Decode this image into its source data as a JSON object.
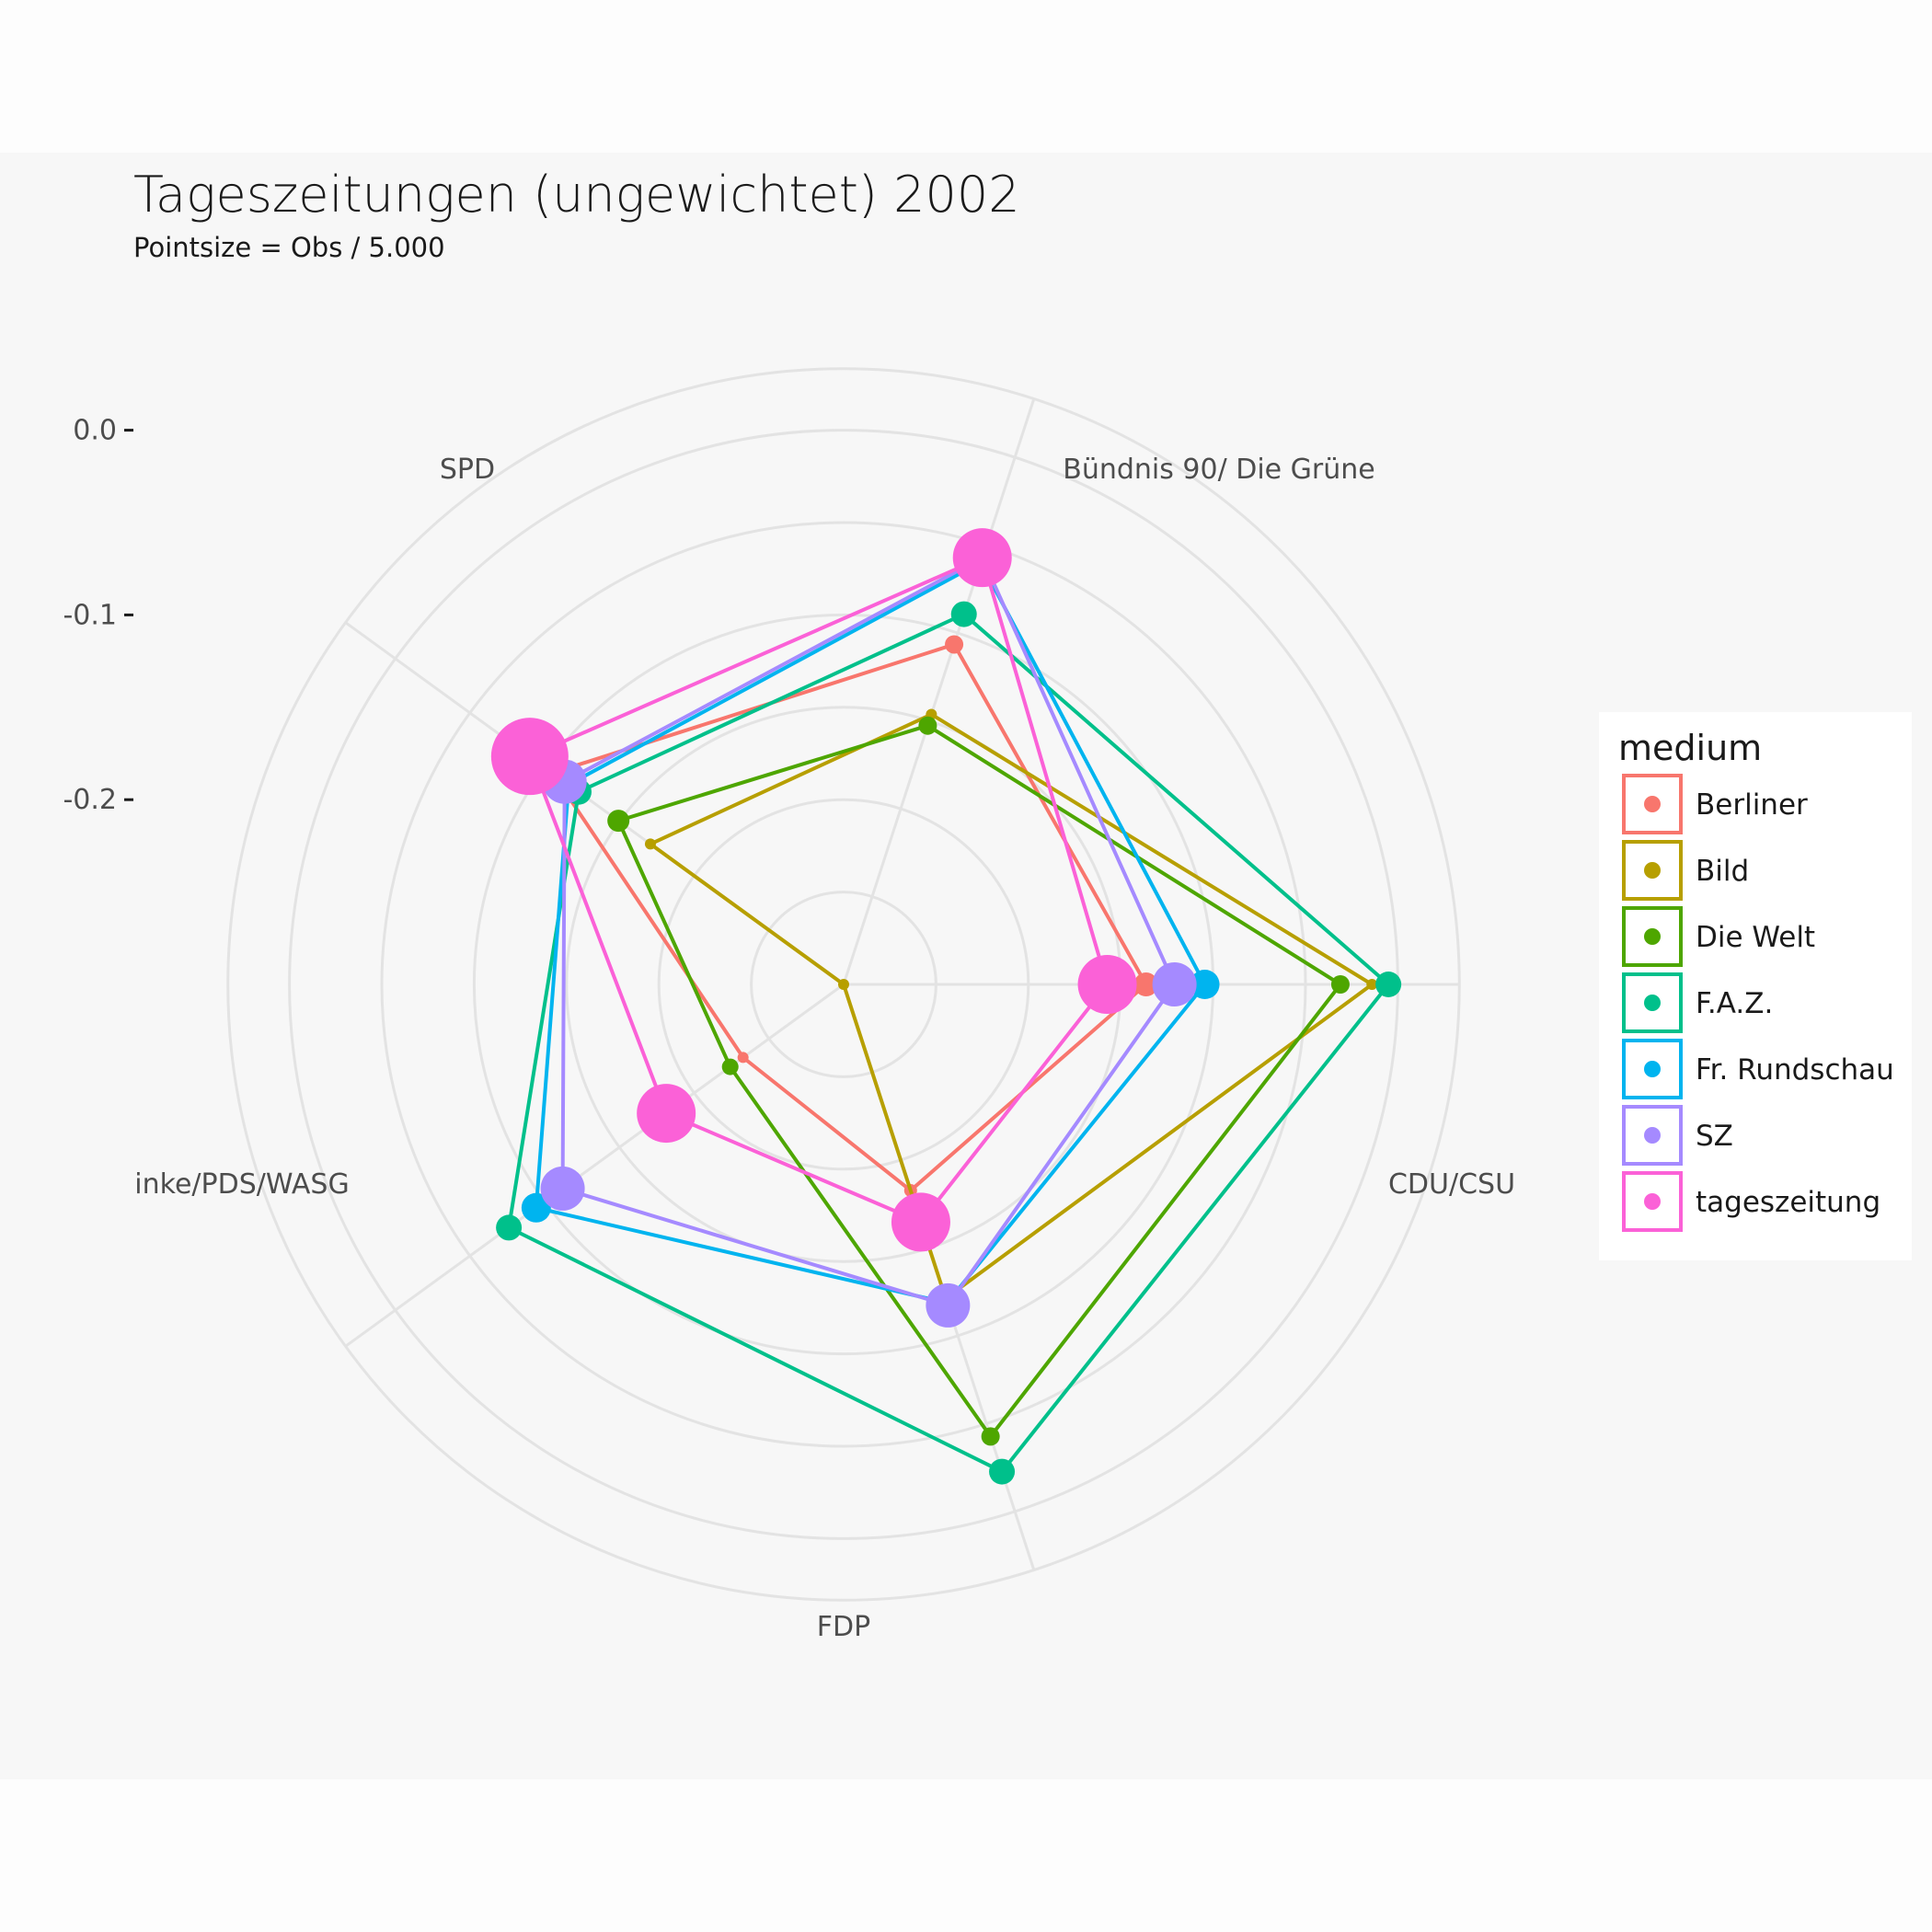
{
  "chart_data": {
    "type": "radar",
    "title": "Tageszeitungen (ungewichtet) 2002",
    "subtitle": "Pointsize = Obs / 5.000",
    "categories": [
      "SPD",
      "Bündnis 90/ Die Grüne",
      "CDU/CSU",
      "FDP",
      "inke/PDS/WASG"
    ],
    "radial_axis": {
      "ticks": [
        0.0,
        -0.1,
        -0.2
      ],
      "tick_labels": [
        "0.0",
        "-0.1",
        "-0.2"
      ],
      "range": [
        -0.3,
        0.0333
      ]
    },
    "grid": true,
    "legend": {
      "title": "medium",
      "position": "right"
    },
    "series": [
      {
        "name": "Berliner",
        "color": "#f8766d",
        "values": [
          -0.1053,
          -0.1065,
          -0.1363,
          -0.1827,
          -0.2327
        ],
        "sizes": [
          1.0,
          1.0,
          1.3,
          0.7,
          0.6
        ]
      },
      {
        "name": "Bild",
        "color": "#b79f00",
        "values": [
          -0.1707,
          -0.1463,
          -0.014,
          -0.1213,
          -0.3
        ],
        "sizes": [
          0.6,
          0.6,
          0.6,
          0.6,
          0.6
        ]
      },
      {
        "name": "Die Welt",
        "color": "#4ea600",
        "values": [
          -0.1493,
          -0.1527,
          -0.0311,
          -0.0427,
          -0.2241
        ],
        "sizes": [
          1.2,
          1.0,
          1.0,
          1.0,
          0.9
        ]
      },
      {
        "name": "F.A.Z.",
        "color": "#00c08b",
        "values": [
          -0.1227,
          -0.0893,
          -0.0051,
          -0.0227,
          -0.076
        ],
        "sizes": [
          1.4,
          1.4,
          1.4,
          1.4,
          1.4
        ]
      },
      {
        "name": "Fr. Rundschau",
        "color": "#00b4ef",
        "values": [
          -0.116,
          -0.0598,
          -0.1045,
          -0.1187,
          -0.0943
        ],
        "sizes": [
          1.6,
          1.6,
          1.6,
          1.6,
          1.6
        ]
      },
      {
        "name": "SZ",
        "color": "#a58aff",
        "values": [
          -0.1133,
          -0.0572,
          -0.1209,
          -0.1173,
          -0.112
        ],
        "sizes": [
          2.4,
          2.4,
          2.4,
          2.4,
          2.4
        ]
      },
      {
        "name": "tageszeitung",
        "color": "#fb61d7",
        "values": [
          -0.09,
          -0.0571,
          -0.1573,
          -0.1647,
          -0.1813
        ],
        "sizes": [
          4.2,
          3.2,
          3.2,
          3.2,
          3.2
        ]
      }
    ]
  }
}
